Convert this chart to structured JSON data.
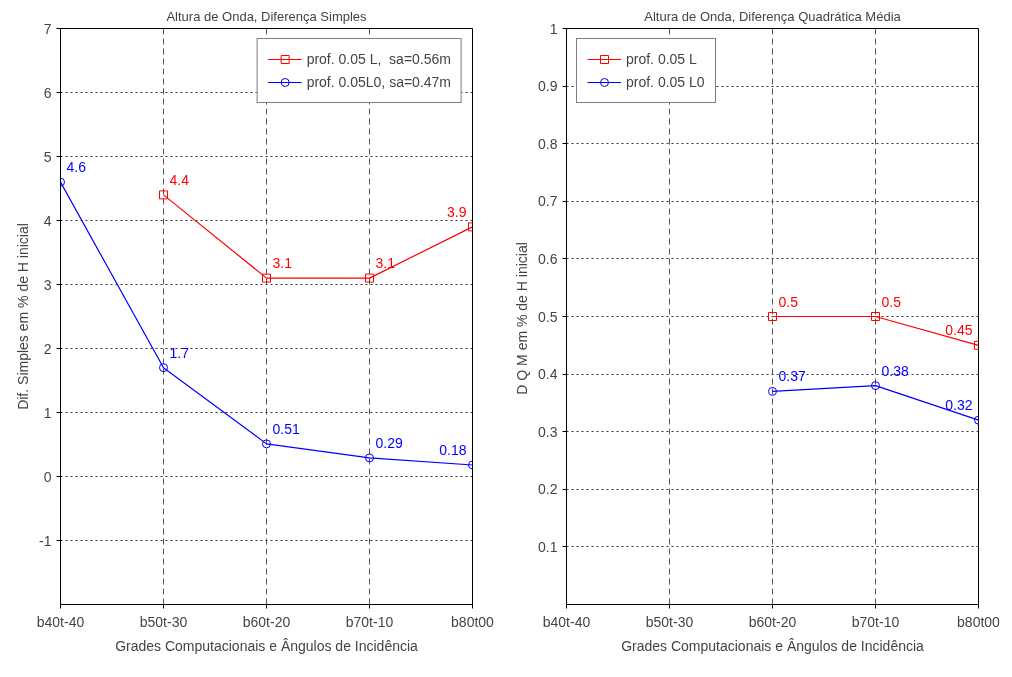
{
  "chart_data": [
    {
      "type": "line",
      "title": "Altura de Onda, Diferença Simples",
      "xlabel": "Grades Computacionais e Ângulos de Incidência",
      "ylabel": "Dif. Simples em % de H inicial",
      "categories": [
        "b40t-40",
        "b50t-30",
        "b60t-20",
        "b70t-10",
        "b80t00"
      ],
      "ylim": [
        -2,
        7
      ],
      "yticks": [
        -1,
        0,
        1,
        2,
        3,
        4,
        5,
        6,
        7
      ],
      "grid": true,
      "legend": "top right",
      "data_labels": true,
      "series": [
        {
          "name": "prof. 0.05 L,  sa=0.56m",
          "color": "#ff0000",
          "marker": "square",
          "values": [
            null,
            4.4,
            3.1,
            3.1,
            3.9
          ]
        },
        {
          "name": "prof. 0.05L0, sa=0.47m",
          "color": "#0000ff",
          "marker": "circle",
          "values": [
            4.6,
            1.7,
            0.51,
            0.29,
            0.18
          ]
        }
      ]
    },
    {
      "type": "line",
      "title": "Altura de Onda, Diferença Quadrática Média",
      "xlabel": "Grades Computacionais e Ângulos de Incidência",
      "ylabel": "D Q M  em % de H inicial",
      "categories": [
        "b40t-40",
        "b50t-30",
        "b60t-20",
        "b70t-10",
        "b80t00"
      ],
      "ylim": [
        0,
        1
      ],
      "yticks": [
        0.1,
        0.2,
        0.3,
        0.4,
        0.5,
        0.6,
        0.7,
        0.8,
        0.9,
        1
      ],
      "grid": true,
      "legend": "top left",
      "data_labels": true,
      "series": [
        {
          "name": "prof. 0.05 L",
          "color": "#ff0000",
          "marker": "square",
          "values": [
            null,
            null,
            0.5,
            0.5,
            0.45
          ]
        },
        {
          "name": "prof. 0.05 L0",
          "color": "#0000ff",
          "marker": "circle",
          "values": [
            null,
            null,
            0.37,
            0.38,
            0.32
          ]
        }
      ]
    }
  ]
}
